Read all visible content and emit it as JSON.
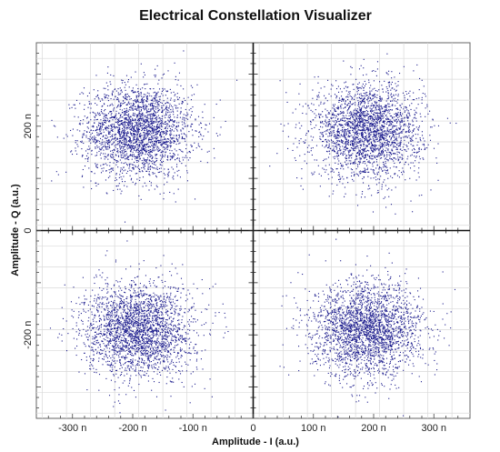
{
  "chart_data": {
    "type": "scatter",
    "title": "Electrical Constellation Visualizer",
    "xlabel": "Amplitude - I (a.u.)",
    "ylabel": "Amplitude - Q (a.u.)",
    "xlim": [
      -360,
      360
    ],
    "ylim": [
      -360,
      360
    ],
    "x_ticks": [
      -300,
      -200,
      -100,
      0,
      100,
      200,
      300
    ],
    "x_tick_labels": [
      "-300 n",
      "-200 n",
      "-100 n",
      "0",
      "100 n",
      "200 n",
      "300 n"
    ],
    "y_ticks": [
      200,
      0,
      -200
    ],
    "y_tick_labels": [
      "200 n",
      "0",
      "-200 n"
    ],
    "grid": true,
    "point_color": "#1a1a8c",
    "series": [
      {
        "center": [
          -190,
          190
        ],
        "spread": 45
      },
      {
        "center": [
          190,
          190
        ],
        "spread": 45
      },
      {
        "center": [
          -190,
          -190
        ],
        "spread": 45
      },
      {
        "center": [
          190,
          -190
        ],
        "spread": 45
      }
    ],
    "points_per_cluster": 2500
  }
}
